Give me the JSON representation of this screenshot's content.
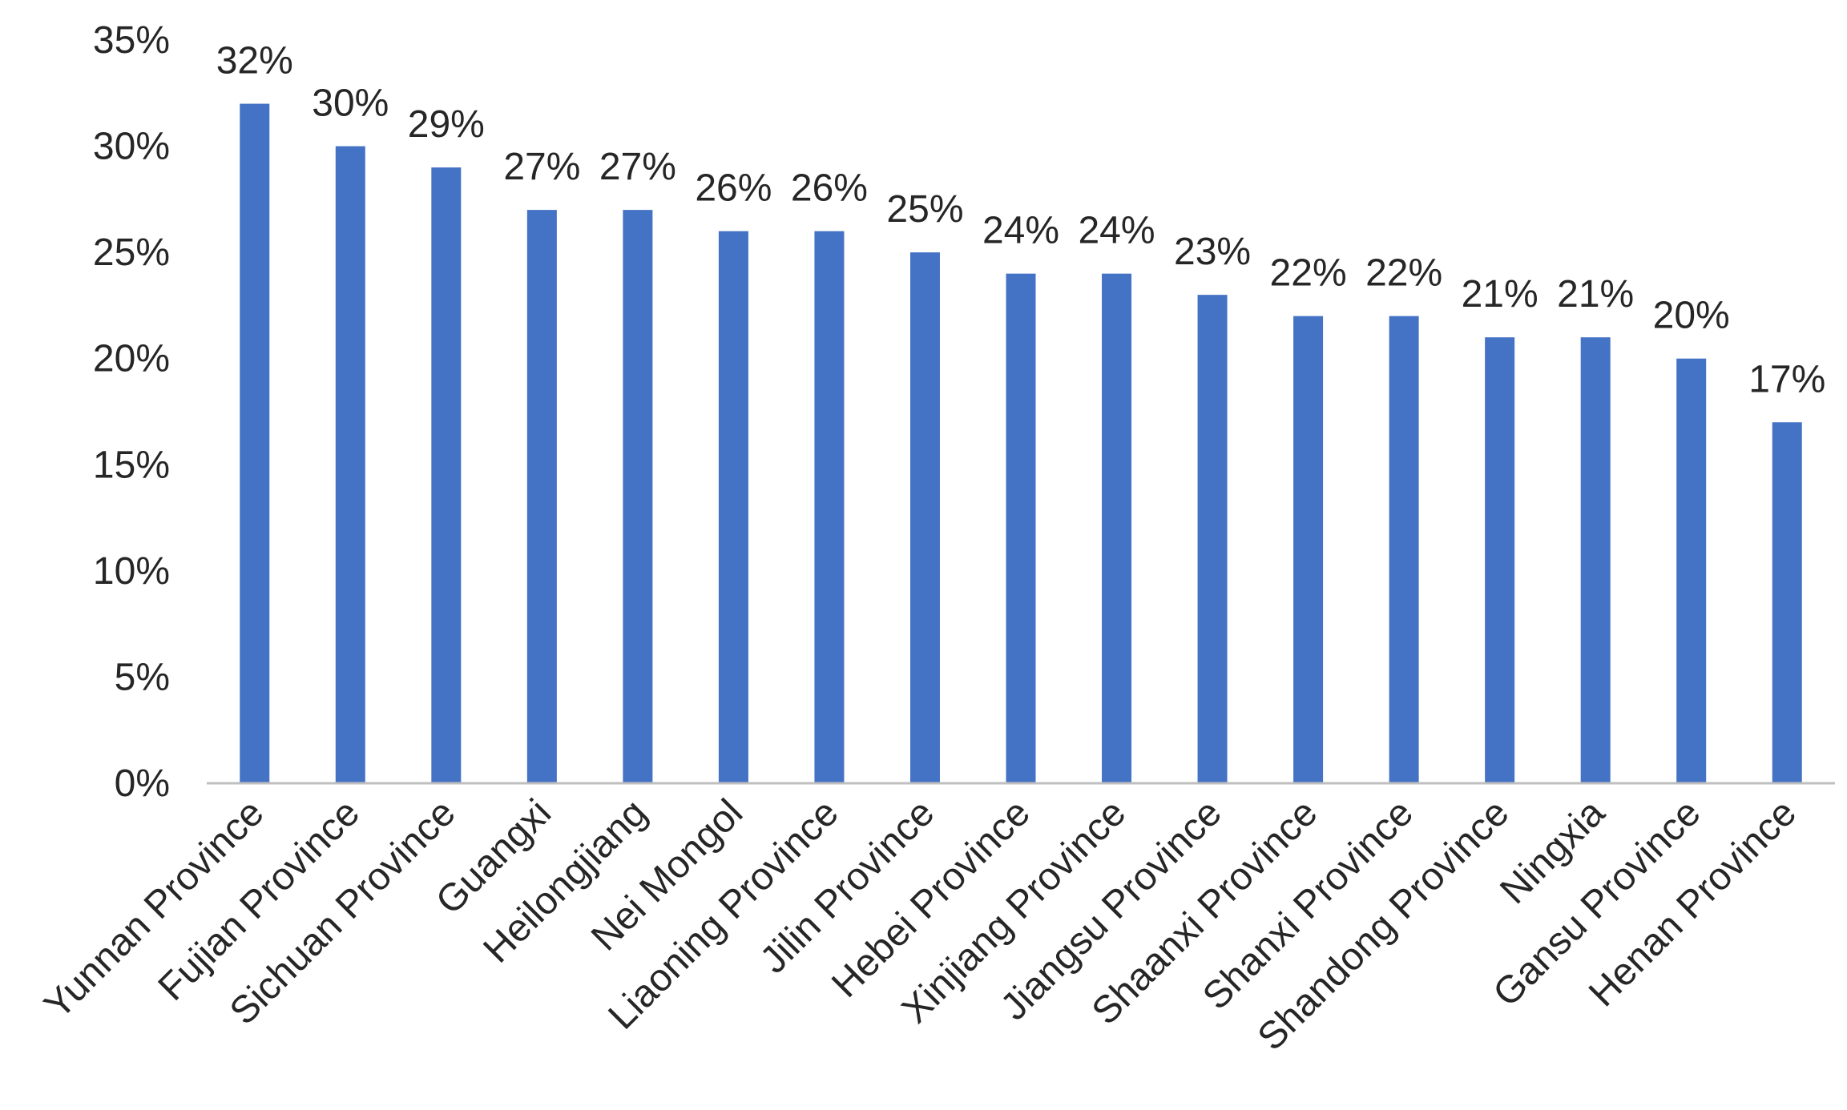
{
  "chart_data": {
    "type": "bar",
    "title": "",
    "xlabel": "",
    "ylabel": "",
    "ylim": [
      0,
      35
    ],
    "y_ticks": [
      0,
      5,
      10,
      15,
      20,
      25,
      30,
      35
    ],
    "y_tick_labels": [
      "0%",
      "5%",
      "10%",
      "15%",
      "20%",
      "25%",
      "30%",
      "35%"
    ],
    "grid": false,
    "legend": "none",
    "bar_color": "#4472C4",
    "axis_color": "#BFBFBF",
    "text_color": "#262626",
    "categories": [
      "Yunnan Province",
      "Fujian Province",
      "Sichuan Province",
      "Guangxi",
      "Heilongjiang",
      "Nei Mongol",
      "Liaoning Province",
      "Jilin Province",
      "Hebei Province",
      "Xinjiang Province",
      "Jiangsu Province",
      "Shaanxi Province",
      "Shanxi Province",
      "Shandong Province",
      "Ningxia",
      "Gansu Province",
      "Henan Province"
    ],
    "values": [
      32,
      30,
      29,
      27,
      27,
      26,
      26,
      25,
      24,
      24,
      23,
      22,
      22,
      21,
      21,
      20,
      17
    ],
    "data_labels": [
      "32%",
      "30%",
      "29%",
      "27%",
      "27%",
      "26%",
      "26%",
      "25%",
      "24%",
      "24%",
      "23%",
      "22%",
      "22%",
      "21%",
      "21%",
      "20%",
      "17%"
    ]
  }
}
